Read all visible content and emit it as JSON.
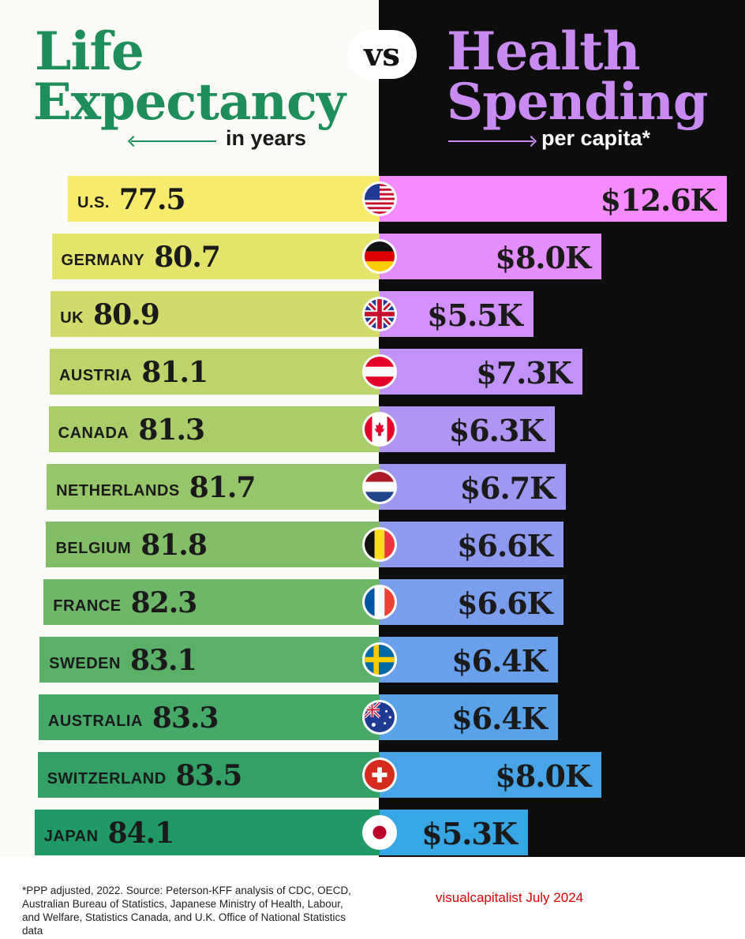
{
  "header": {
    "left_title_line1": "Life",
    "left_title_line2": "Expectancy",
    "left_subtitle": "in years",
    "vs": "vs",
    "right_title_line1": "Health",
    "right_title_line2": "Spending",
    "right_subtitle": "per capita*"
  },
  "colors": {
    "green_title": "#1e8f5a",
    "purple_title": "#c98af2",
    "dark_panel": "#0d0d0d",
    "left_bar_gradient": [
      "#f8ea6b",
      "#1f9a66"
    ],
    "right_bar_gradient": [
      "#f58bff",
      "#36a7e4"
    ]
  },
  "chart_data": {
    "type": "bar",
    "categories": [
      "U.S.",
      "GERMANY",
      "UK",
      "AUSTRIA",
      "CANADA",
      "NETHERLANDS",
      "BELGIUM",
      "FRANCE",
      "SWEDEN",
      "AUSTRALIA",
      "SWITZERLAND",
      "JAPAN"
    ],
    "series": [
      {
        "name": "Life Expectancy",
        "values": [
          77.5,
          80.7,
          80.9,
          81.1,
          81.3,
          81.7,
          81.8,
          82.3,
          83.1,
          83.3,
          83.5,
          84.1
        ],
        "labels": [
          "77.5",
          "80.7",
          "80.9",
          "81.1",
          "81.3",
          "81.7",
          "81.8",
          "82.3",
          "83.1",
          "83.3",
          "83.5",
          "84.1"
        ]
      },
      {
        "name": "Health Spending",
        "values": [
          12.6,
          8.0,
          5.5,
          7.3,
          6.3,
          6.7,
          6.6,
          6.6,
          6.4,
          6.4,
          8.0,
          5.3
        ],
        "labels": [
          "$12.6K",
          "$8.0K",
          "$5.5K",
          "$7.3K",
          "$6.3K",
          "$6.7K",
          "$6.6K",
          "$6.6K",
          "$6.4K",
          "$6.4K",
          "$8.0K",
          "$5.3K"
        ]
      }
    ],
    "flags": [
      "us-flag-icon",
      "germany-flag-icon",
      "uk-flag-icon",
      "austria-flag-icon",
      "canada-flag-icon",
      "netherlands-flag-icon",
      "belgium-flag-icon",
      "france-flag-icon",
      "sweden-flag-icon",
      "australia-flag-icon",
      "switzerland-flag-icon",
      "japan-flag-icon"
    ]
  },
  "footer": {
    "footnote": "*PPP adjusted, 2022. Source: Peterson-KFF analysis of CDC, OECD, Australian Bureau of Statistics, Japanese Ministry of Health, Labour, and Welfare, Statistics Canada, and U.K. Office of National Statistics data",
    "credit": "visualcapitalist July 2024"
  }
}
